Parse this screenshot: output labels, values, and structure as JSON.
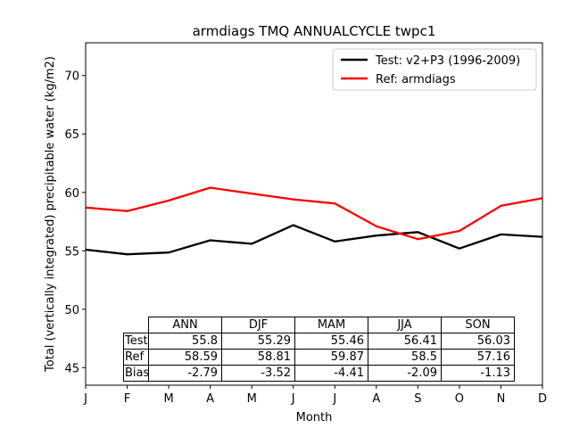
{
  "chart_data": {
    "type": "line",
    "title": "armdiags TMQ ANNUALCYCLE twpc1",
    "xlabel": "Month",
    "ylabel": "Total (vertically integrated) precipitable water (kg/m2)",
    "categories": [
      "J",
      "F",
      "M",
      "A",
      "M",
      "J",
      "J",
      "A",
      "S",
      "O",
      "N",
      "D"
    ],
    "ylim": [
      43.5,
      72.8
    ],
    "yticks": [
      45,
      50,
      55,
      60,
      65,
      70
    ],
    "grid": false,
    "legend_position": "top-right",
    "series": [
      {
        "name": "Test: v2+P3 (1996-2009)",
        "color": "#000000",
        "values": [
          55.1,
          54.7,
          54.85,
          55.9,
          55.6,
          57.2,
          55.8,
          56.3,
          56.6,
          55.2,
          56.4,
          56.2
        ]
      },
      {
        "name": "Ref: armdiags",
        "color": "#ff0000",
        "values": [
          58.7,
          58.4,
          59.3,
          60.4,
          59.9,
          59.4,
          59.05,
          57.1,
          56.0,
          56.7,
          58.85,
          59.5
        ]
      }
    ],
    "table": {
      "columns": [
        "ANN",
        "DJF",
        "MAM",
        "JJA",
        "SON"
      ],
      "rows": [
        {
          "label": "Test",
          "values": [
            "55.8",
            "55.29",
            "55.46",
            "56.41",
            "56.03"
          ]
        },
        {
          "label": "Ref",
          "values": [
            "58.59",
            "58.81",
            "59.87",
            "58.5",
            "57.16"
          ]
        },
        {
          "label": "Bias",
          "values": [
            "-2.79",
            "-3.52",
            "-4.41",
            "-2.09",
            "-1.13"
          ]
        }
      ]
    }
  }
}
